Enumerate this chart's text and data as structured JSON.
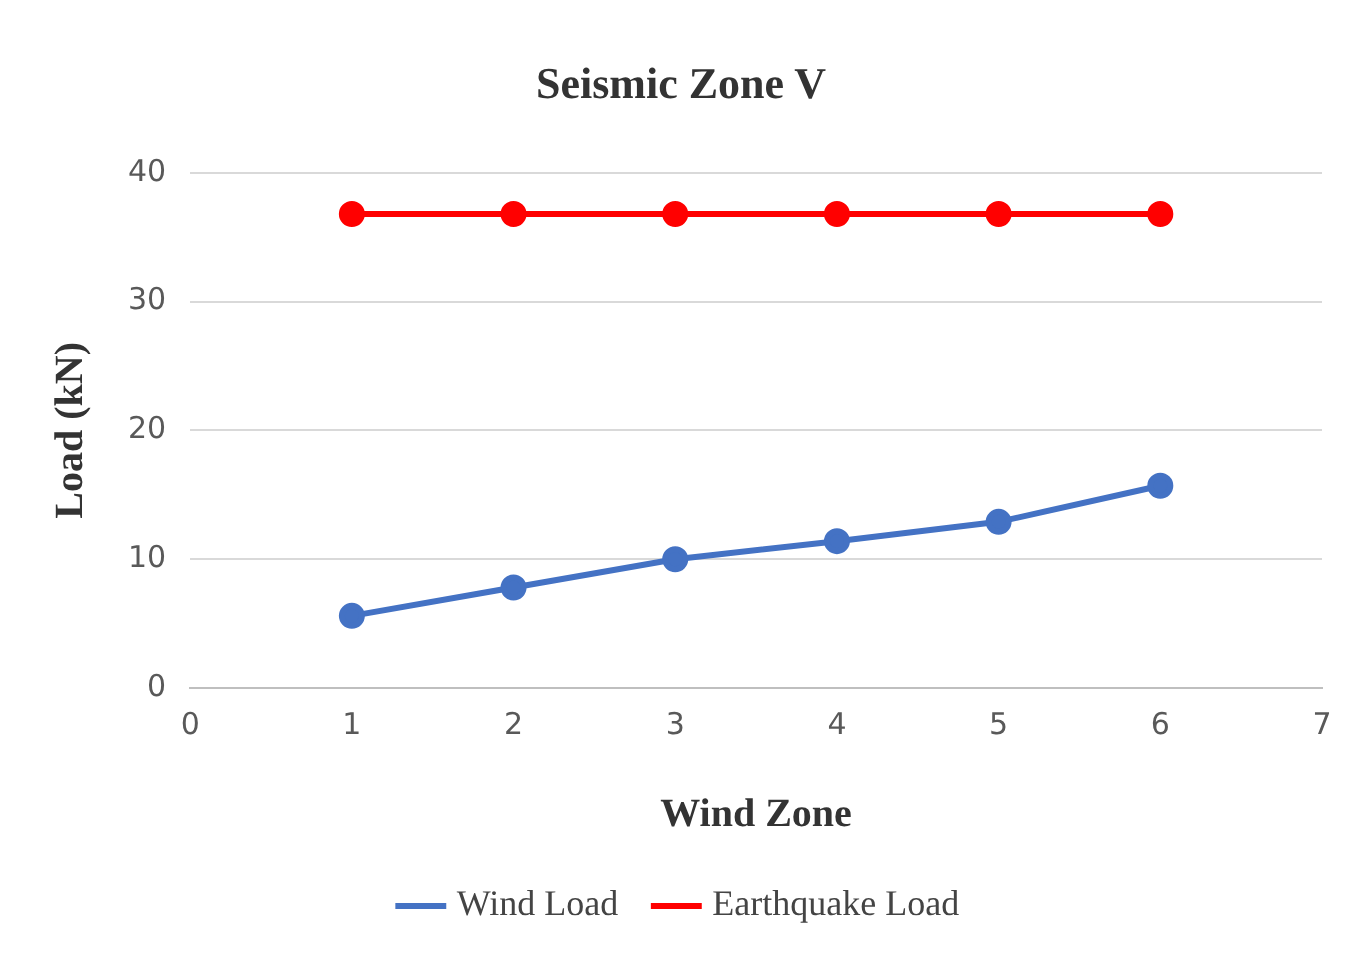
{
  "chart_data": {
    "type": "line",
    "title": "Seismic Zone V",
    "xlabel": "Wind Zone",
    "ylabel": "Load (kN)",
    "x": [
      1,
      2,
      3,
      4,
      5,
      6
    ],
    "series": [
      {
        "name": "Wind Load",
        "color": "#4472c4",
        "values": [
          5.6,
          7.8,
          10,
          11.4,
          12.9,
          15.7
        ]
      },
      {
        "name": "Earthquake Load",
        "color": "#ff0000",
        "values": [
          36.8,
          36.8,
          36.8,
          36.8,
          36.8,
          36.8
        ]
      }
    ],
    "xlim": [
      0,
      7
    ],
    "xticks": [
      0,
      1,
      2,
      3,
      4,
      5,
      6,
      7
    ],
    "ylim": [
      0,
      40
    ],
    "yticks": [
      0,
      10,
      20,
      30,
      40
    ],
    "grid": "y",
    "legend": "bottom",
    "marker": "circle",
    "line_style": "solid"
  }
}
